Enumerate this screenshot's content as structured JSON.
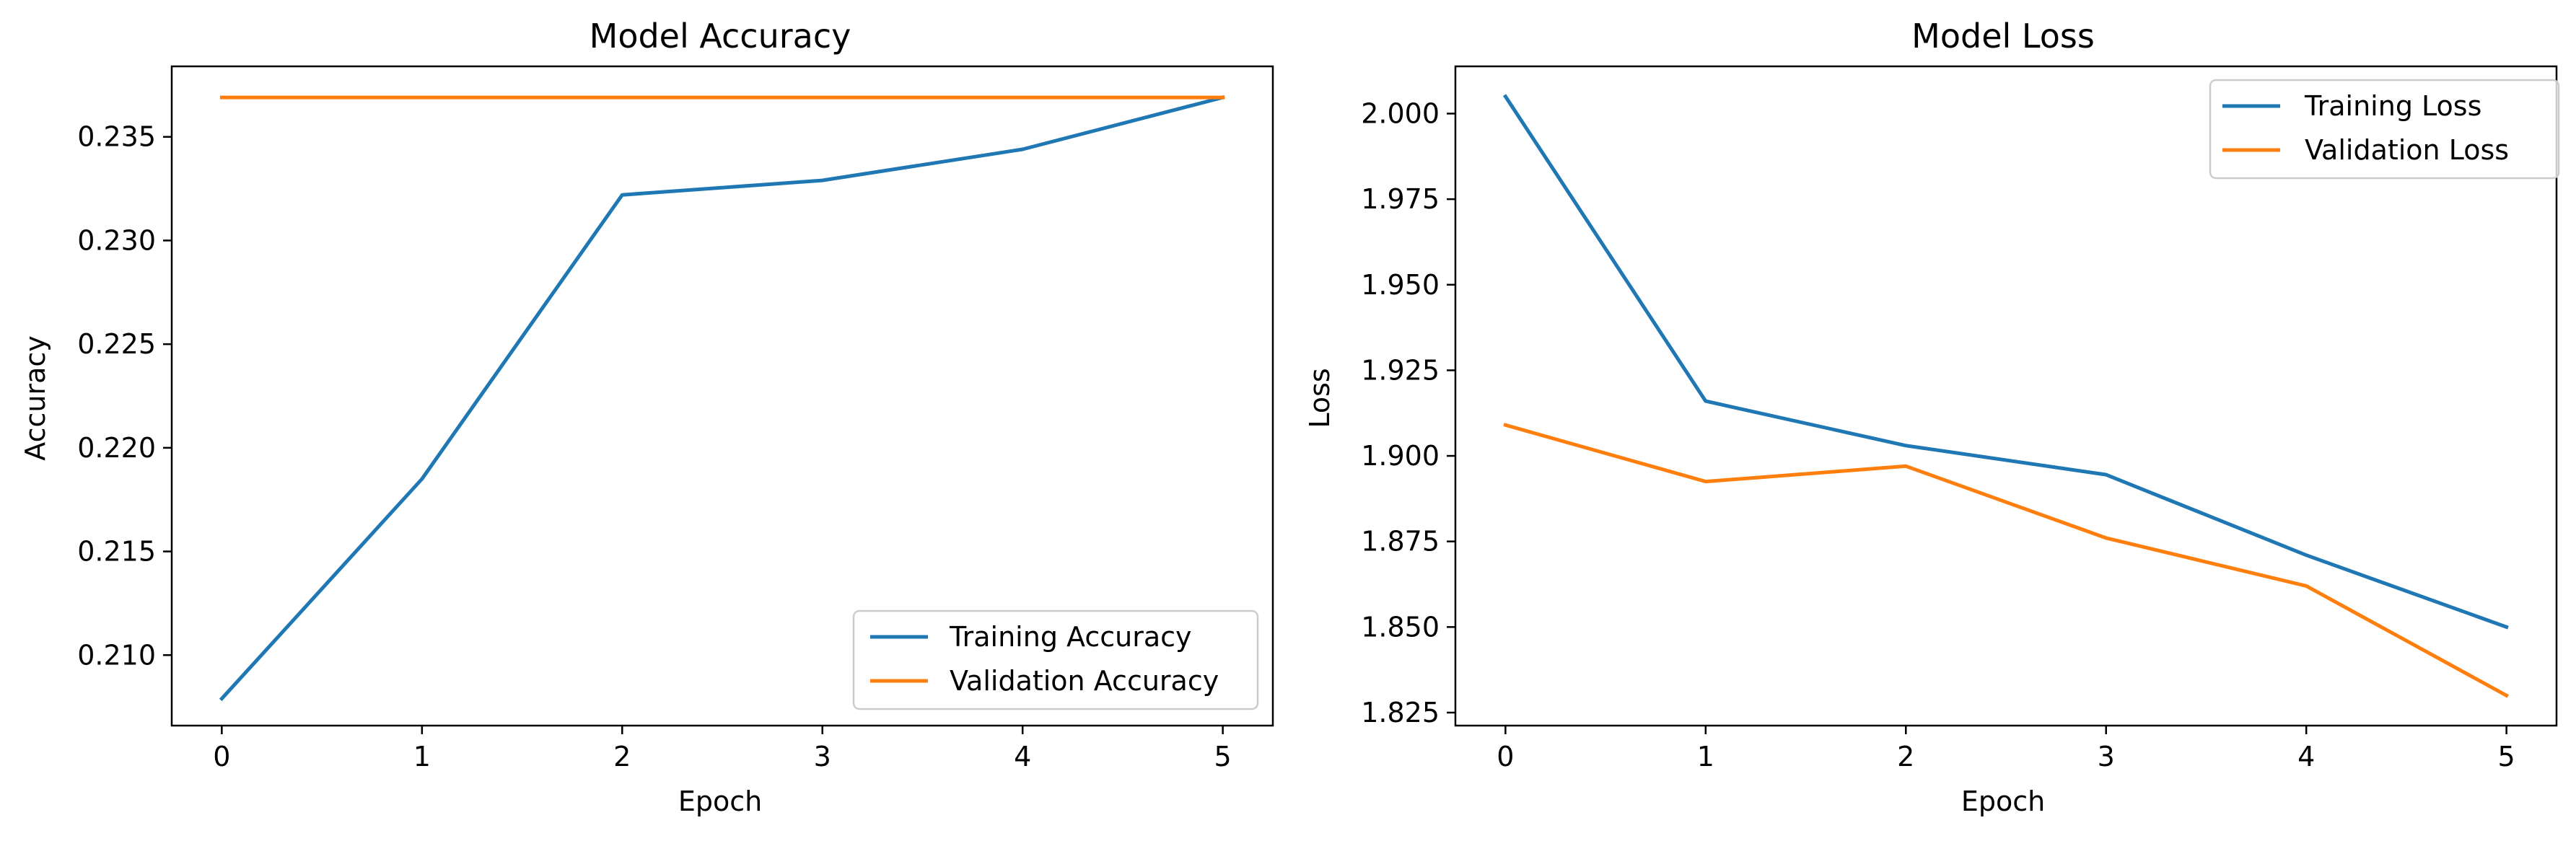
{
  "chart_data": [
    {
      "type": "line",
      "title": "Model Accuracy",
      "xlabel": "Epoch",
      "ylabel": "Accuracy",
      "x": [
        0,
        1,
        2,
        3,
        4,
        5
      ],
      "xticks": [
        "0",
        "1",
        "2",
        "3",
        "4",
        "5"
      ],
      "yticks": [
        "0.210",
        "0.215",
        "0.220",
        "0.225",
        "0.230",
        "0.235"
      ],
      "xlim": [
        -0.25,
        5.25
      ],
      "ylim": [
        0.2066,
        0.2384
      ],
      "legend_position": "lower right",
      "grid": false,
      "series": [
        {
          "name": "Training Accuracy",
          "color": "#1f77b4",
          "values": [
            0.2079,
            0.2185,
            0.2322,
            0.2329,
            0.2344,
            0.2369
          ]
        },
        {
          "name": "Validation Accuracy",
          "color": "#ff7f0e",
          "values": [
            0.2369,
            0.2369,
            0.2369,
            0.2369,
            0.2369,
            0.2369
          ]
        }
      ]
    },
    {
      "type": "line",
      "title": "Model Loss",
      "xlabel": "Epoch",
      "ylabel": "Loss",
      "x": [
        0,
        1,
        2,
        3,
        4,
        5
      ],
      "xticks": [
        "0",
        "1",
        "2",
        "3",
        "4",
        "5"
      ],
      "yticks": [
        "1.825",
        "1.850",
        "1.875",
        "1.900",
        "1.925",
        "1.950",
        "1.975",
        "2.000"
      ],
      "xlim": [
        -0.25,
        5.25
      ],
      "ylim": [
        1.8212,
        2.0138
      ],
      "legend_position": "upper right",
      "grid": false,
      "series": [
        {
          "name": "Training Loss",
          "color": "#1f77b4",
          "values": [
            2.005,
            1.916,
            1.903,
            1.8945,
            1.871,
            1.85
          ]
        },
        {
          "name": "Validation Loss",
          "color": "#ff7f0e",
          "values": [
            1.909,
            1.8925,
            1.897,
            1.876,
            1.862,
            1.83
          ]
        }
      ]
    }
  ]
}
